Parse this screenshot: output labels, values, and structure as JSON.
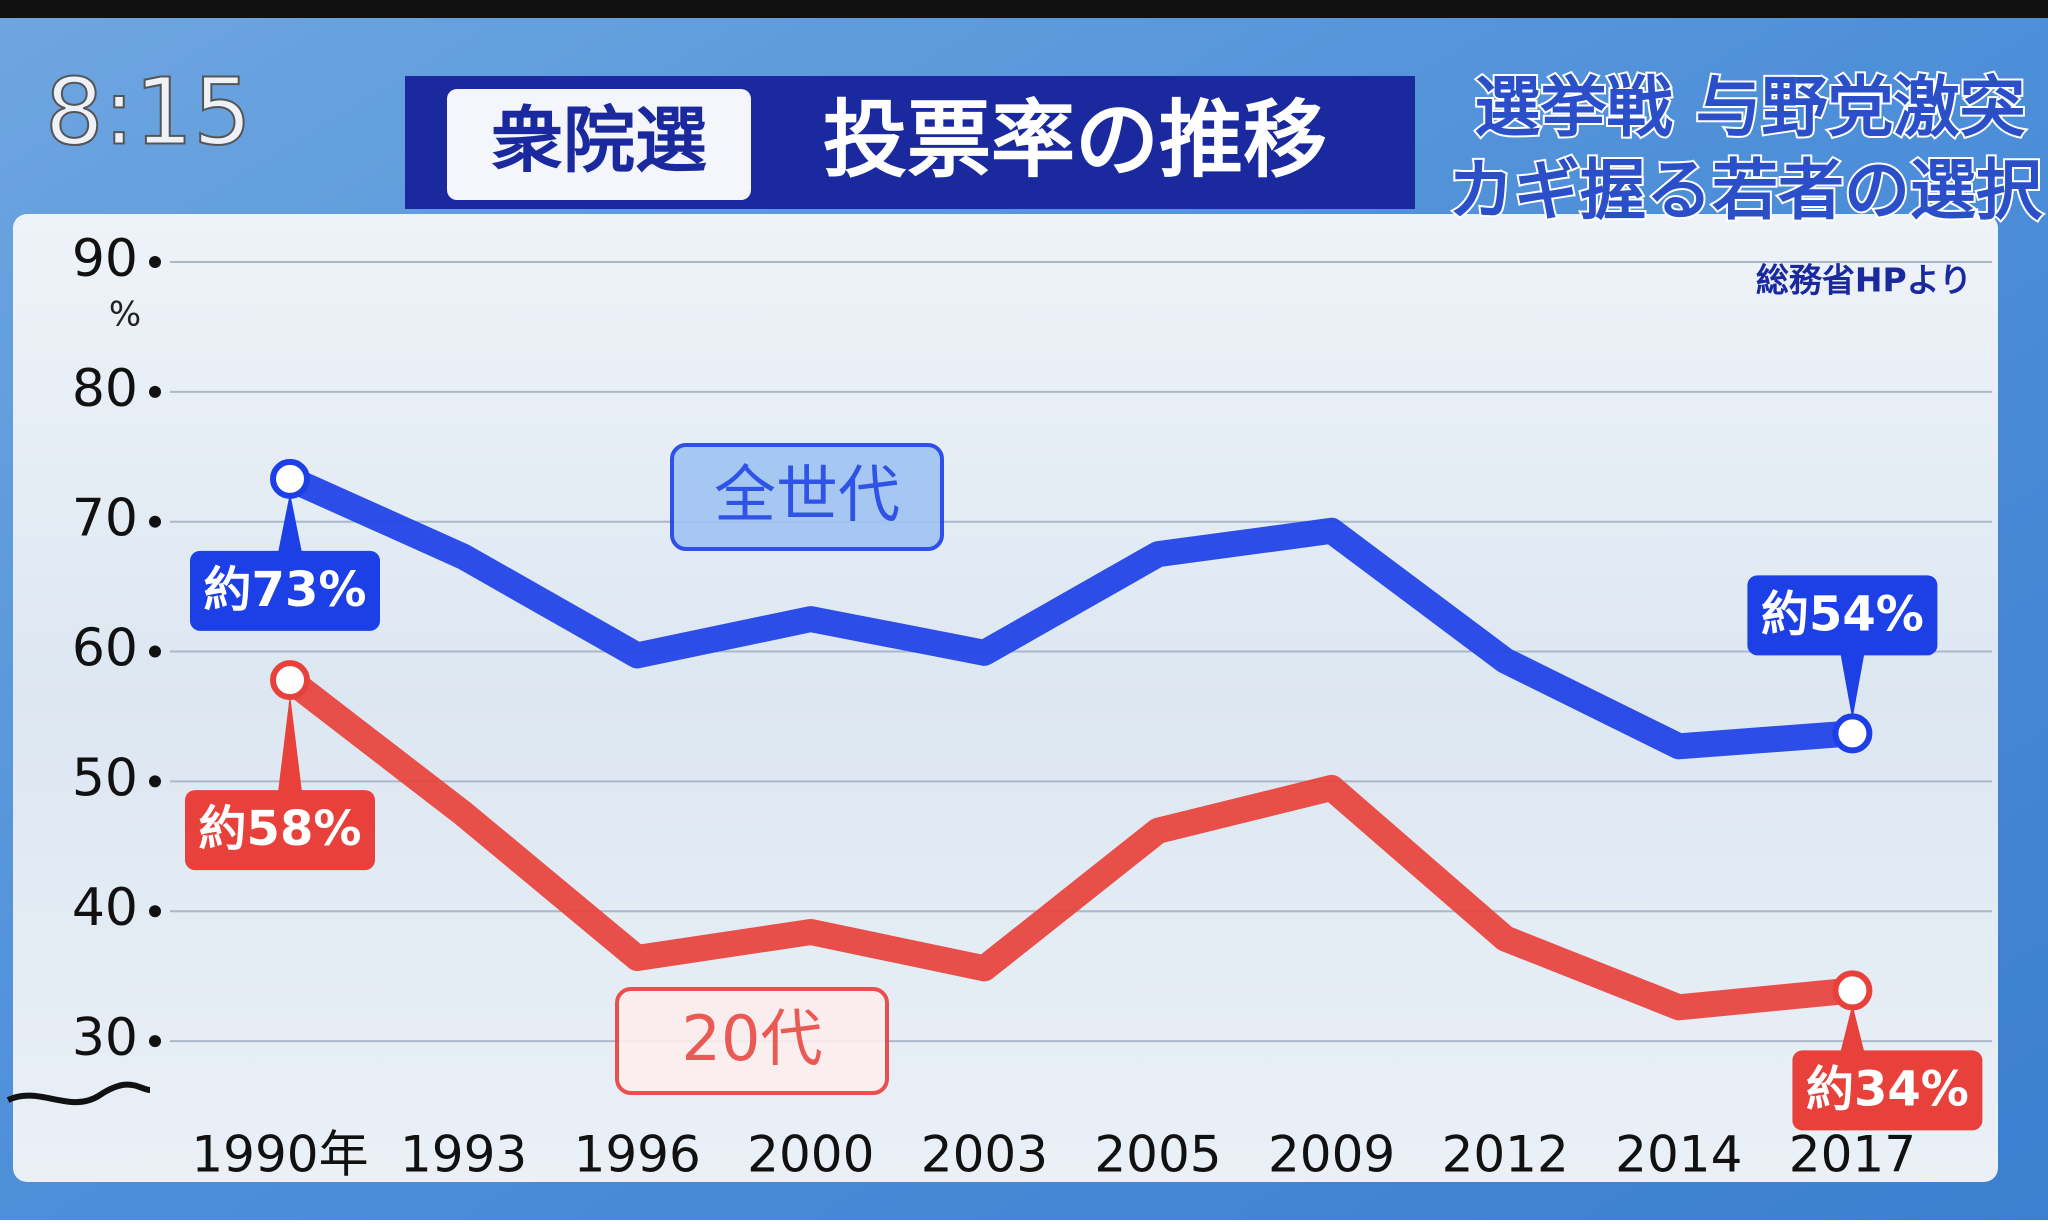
{
  "overlay": {
    "clock": "8:15",
    "caption": [
      "選挙戦 与野党激突",
      "カギ握る若者の選択"
    ]
  },
  "chart_data": {
    "type": "line",
    "title_badge": "衆院選",
    "title": "投票率の推移",
    "source": "総務省HPより",
    "ylabel": "%",
    "categories": [
      "1990年",
      "1993",
      "1996",
      "2000",
      "2003",
      "2005",
      "2009",
      "2012",
      "2014",
      "2017"
    ],
    "series": [
      {
        "name": "全世代",
        "color": "#1c3fe6",
        "values": [
          73.3,
          67.3,
          59.7,
          62.5,
          59.9,
          67.5,
          69.3,
          59.3,
          52.7,
          53.7
        ],
        "value_labels": [
          "約73%",
          null,
          null,
          null,
          null,
          null,
          null,
          null,
          null,
          "約54%"
        ]
      },
      {
        "name": "20代",
        "color": "#e8413b",
        "values": [
          57.8,
          47.5,
          36.4,
          38.4,
          35.6,
          46.2,
          49.5,
          37.9,
          32.6,
          33.9
        ],
        "value_labels": [
          "約58%",
          null,
          null,
          null,
          null,
          null,
          null,
          null,
          null,
          "約34%"
        ]
      }
    ],
    "ylim": [
      25,
      90
    ],
    "yticks": [
      30,
      40,
      50,
      60,
      70,
      80,
      90
    ],
    "grid": true
  }
}
